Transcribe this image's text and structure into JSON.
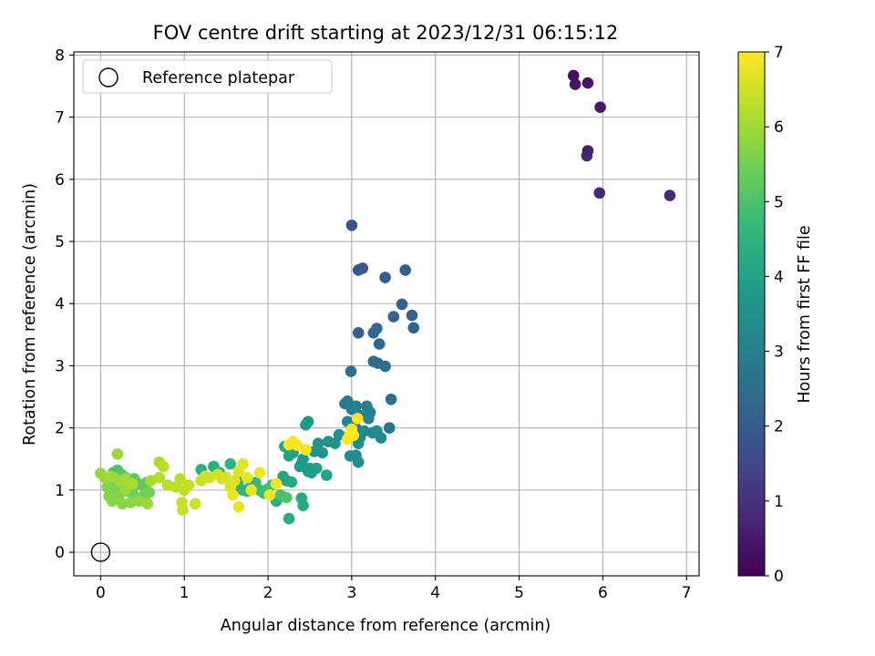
{
  "chart_data": {
    "type": "scatter",
    "title": "FOV centre drift starting at 2023/12/31 06:15:12",
    "xlabel": "Angular distance from reference (arcmin)",
    "ylabel": "Rotation from reference (arcmin)",
    "xlim": [
      -0.32,
      7.15
    ],
    "ylim": [
      -0.38,
      8.05
    ],
    "xticks": [
      0,
      1,
      2,
      3,
      4,
      5,
      6,
      7
    ],
    "yticks": [
      0,
      1,
      2,
      3,
      4,
      5,
      6,
      7,
      8
    ],
    "grid": true,
    "legend": {
      "placement": "top-left",
      "entries": [
        {
          "label": "Reference platepar",
          "marker": "hollow-circle"
        }
      ]
    },
    "reference_point": {
      "x": 0,
      "y": 0
    },
    "colorbar": {
      "label": "Hours from first FF file",
      "range": [
        0,
        7
      ],
      "ticks": [
        0,
        1,
        2,
        3,
        4,
        5,
        6,
        7
      ],
      "colormap": "viridis"
    },
    "colormap_stops": [
      "#440154",
      "#482878",
      "#3e4a89",
      "#31688e",
      "#26828e",
      "#1f9e89",
      "#35b779",
      "#6ece58",
      "#b5de2b",
      "#fde725"
    ],
    "series": [
      {
        "x": [
          5.65,
          5.67,
          5.82,
          5.97,
          5.82,
          5.81,
          5.96,
          6.8
        ],
        "y": [
          7.67,
          7.53,
          7.55,
          7.16,
          6.46,
          6.38,
          5.78,
          5.74
        ],
        "c": [
          0.3,
          0.35,
          0.4,
          0.5,
          0.6,
          0.65,
          0.75,
          0.85
        ]
      },
      {
        "x": [
          3.0,
          3.08,
          3.13,
          3.4,
          3.64,
          3.08,
          3.5,
          3.6,
          3.72,
          3.74,
          3.26,
          3.3,
          3.33,
          3.26,
          3.31,
          3.4,
          2.99,
          3.47,
          3.45
        ],
        "y": [
          5.26,
          4.54,
          4.57,
          4.42,
          4.54,
          3.53,
          3.79,
          3.99,
          3.81,
          3.61,
          3.53,
          3.6,
          3.35,
          3.07,
          3.04,
          2.99,
          2.91,
          2.46,
          2.0
        ],
        "c": [
          1.85,
          1.9,
          1.95,
          2.0,
          2.05,
          2.1,
          2.15,
          2.2,
          2.2,
          2.25,
          2.3,
          2.3,
          2.35,
          2.4,
          2.45,
          2.5,
          2.55,
          2.6,
          2.7
        ]
      },
      {
        "x": [
          2.92,
          2.95,
          3.0,
          3.05,
          3.1,
          3.18,
          3.22,
          3.2,
          2.95,
          3.05,
          3.15,
          3.25,
          3.1,
          3.3,
          3.35,
          3.08,
          2.98,
          3.05,
          3.08,
          2.85,
          2.8,
          2.72,
          2.65,
          2.6,
          2.55,
          2.48,
          2.45,
          2.42,
          2.4,
          2.38,
          2.48,
          2.5,
          2.52,
          2.58,
          2.7,
          2.3,
          2.25,
          2.2,
          2.18,
          2.22,
          2.28,
          2.4,
          2.42,
          2.25,
          2.1
        ],
        "y": [
          2.39,
          2.43,
          2.3,
          2.35,
          2.2,
          2.35,
          2.25,
          2.15,
          2.1,
          2.0,
          1.95,
          1.92,
          1.85,
          1.95,
          1.84,
          1.75,
          1.55,
          1.56,
          1.45,
          1.89,
          1.75,
          1.78,
          1.6,
          1.75,
          1.62,
          2.1,
          2.05,
          1.5,
          1.42,
          1.38,
          1.3,
          1.35,
          1.28,
          1.35,
          1.24,
          1.6,
          1.55,
          1.7,
          1.22,
          1.15,
          1.13,
          0.87,
          0.75,
          0.54,
          0.82
        ],
        "c": [
          2.8,
          2.85,
          2.9,
          2.95,
          3.0,
          3.0,
          3.05,
          3.1,
          3.1,
          3.15,
          3.2,
          3.2,
          3.25,
          3.3,
          3.3,
          3.35,
          3.4,
          3.4,
          3.45,
          3.5,
          3.5,
          3.55,
          3.6,
          3.6,
          3.65,
          3.7,
          3.7,
          3.75,
          3.8,
          3.8,
          3.85,
          3.9,
          3.9,
          3.95,
          4.0,
          4.0,
          4.05,
          4.1,
          4.1,
          4.15,
          4.2,
          4.2,
          4.25,
          4.3,
          4.35
        ]
      },
      {
        "x": [
          1.2,
          1.35,
          1.42,
          1.55,
          1.6,
          1.65,
          1.7,
          1.75,
          1.8,
          1.85,
          1.9,
          1.95,
          2.0,
          2.05,
          2.15,
          2.22,
          0.15,
          0.2,
          0.25,
          0.3,
          0.35,
          0.4,
          0.45,
          0.5,
          0.55,
          0.28,
          0.32,
          0.38,
          0.42,
          0.48,
          0.52,
          0.58,
          0.12,
          0.18,
          0.22,
          0.08,
          0.1,
          0.14,
          0.16,
          0.26,
          0.36,
          0.46,
          0.56,
          0.2,
          0.3
        ],
        "y": [
          1.33,
          1.38,
          1.28,
          1.42,
          1.05,
          1.15,
          1.0,
          0.98,
          1.1,
          1.12,
          1.0,
          0.95,
          1.02,
          1.08,
          0.92,
          0.88,
          1.28,
          1.32,
          1.25,
          1.2,
          1.15,
          1.18,
          1.1,
          1.08,
          1.12,
          1.05,
          0.98,
          0.95,
          0.88,
          0.85,
          0.92,
          0.96,
          1.1,
          1.0,
          0.92,
          1.05,
          0.9,
          0.82,
          1.2,
          0.78,
          0.8,
          0.82,
          0.78,
          1.58,
          1.0
        ],
        "c": [
          4.4,
          4.4,
          4.45,
          4.5,
          4.5,
          4.55,
          4.6,
          4.6,
          4.65,
          4.7,
          4.75,
          4.8,
          4.85,
          4.9,
          4.95,
          5.0,
          5.0,
          5.05,
          5.1,
          5.1,
          5.15,
          5.2,
          5.2,
          5.25,
          5.3,
          5.3,
          5.35,
          5.4,
          5.4,
          5.45,
          5.5,
          5.5,
          5.55,
          5.6,
          5.6,
          5.65,
          5.7,
          5.7,
          5.75,
          5.8,
          5.8,
          5.85,
          5.9,
          5.9,
          5.95
        ]
      },
      {
        "x": [
          0.0,
          0.05,
          0.12,
          0.22,
          0.3,
          0.38,
          0.6,
          0.7,
          0.75,
          0.7,
          0.8,
          0.9,
          0.95,
          1.0,
          1.05,
          0.97,
          0.98,
          1.13,
          1.2,
          1.25,
          1.3,
          1.4,
          1.45,
          1.5,
          1.55,
          1.6,
          1.65,
          1.7,
          1.75,
          1.8,
          1.65,
          1.58,
          1.9,
          2.02,
          2.1,
          2.25,
          2.3,
          2.45,
          2.35,
          2.95,
          3.0,
          3.07,
          2.98,
          3.02
        ],
        "y": [
          1.27,
          1.2,
          1.22,
          1.15,
          1.18,
          1.1,
          1.15,
          1.45,
          1.38,
          1.2,
          1.08,
          1.05,
          1.18,
          1.0,
          1.08,
          0.8,
          0.68,
          0.78,
          1.15,
          1.22,
          1.2,
          1.25,
          1.18,
          1.2,
          1.05,
          1.15,
          1.3,
          1.42,
          1.2,
          1.0,
          0.73,
          0.92,
          1.28,
          0.92,
          1.1,
          1.73,
          1.78,
          1.65,
          1.72,
          1.82,
          1.98,
          2.15,
          1.92,
          1.88
        ],
        "c": [
          5.9,
          5.95,
          6.0,
          6.0,
          6.05,
          6.1,
          6.1,
          6.15,
          6.2,
          6.2,
          6.25,
          6.3,
          6.3,
          6.35,
          6.35,
          6.4,
          6.4,
          6.45,
          6.45,
          6.5,
          6.5,
          6.55,
          6.55,
          6.6,
          6.6,
          6.65,
          6.65,
          6.7,
          6.7,
          6.75,
          6.75,
          6.8,
          6.8,
          6.85,
          6.85,
          6.9,
          6.9,
          6.95,
          6.95,
          7.0,
          7.0,
          7.0,
          7.0,
          7.0
        ]
      }
    ]
  }
}
